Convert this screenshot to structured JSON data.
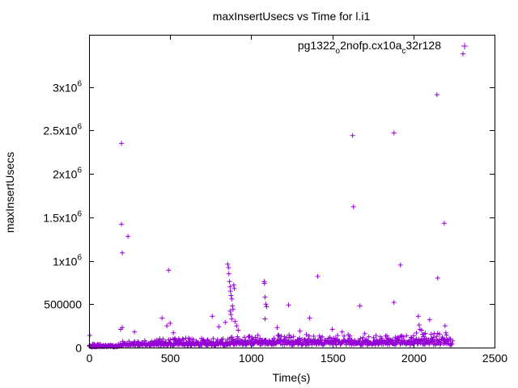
{
  "chart_data": {
    "type": "scatter",
    "title": "maxInsertUsecs vs Time for l.i1",
    "xlabel": "Time(s)",
    "ylabel": "maxInsertUsecs",
    "xlim": [
      0,
      2500
    ],
    "ylim": [
      0,
      3600000
    ],
    "grid": false,
    "legend_position": "top-right",
    "marker": "plus",
    "x_ticks": [
      {
        "value": 0,
        "label": "0"
      },
      {
        "value": 500,
        "label": "500"
      },
      {
        "value": 1000,
        "label": "1000"
      },
      {
        "value": 1500,
        "label": "1500"
      },
      {
        "value": 2000,
        "label": "2000"
      },
      {
        "value": 2500,
        "label": "2500"
      }
    ],
    "y_ticks": [
      {
        "value": 0,
        "mant": "0",
        "exp": ""
      },
      {
        "value": 500000,
        "mant": "500000",
        "exp": ""
      },
      {
        "value": 1000000,
        "mant": "1x10",
        "exp": "6"
      },
      {
        "value": 1500000,
        "mant": "1.5x10",
        "exp": "6"
      },
      {
        "value": 2000000,
        "mant": "2x10",
        "exp": "6"
      },
      {
        "value": 2500000,
        "mant": "2.5x10",
        "exp": "6"
      },
      {
        "value": 3000000,
        "mant": "3x10",
        "exp": "6"
      }
    ],
    "legend": {
      "parts": [
        {
          "text": "pg1322",
          "sub": false
        },
        {
          "text": "o",
          "sub": true
        },
        {
          "text": "2nofp.cx10a",
          "sub": false
        },
        {
          "text": "c",
          "sub": true
        },
        {
          "text": "32r128",
          "sub": false
        }
      ]
    },
    "series": [
      {
        "color": "#9400d3",
        "outliers": [
          [
            5,
            140000
          ],
          [
            200,
            2350000
          ],
          [
            200,
            1420000
          ],
          [
            205,
            1090000
          ],
          [
            195,
            210000
          ],
          [
            205,
            230000
          ],
          [
            240,
            1280000
          ],
          [
            280,
            180000
          ],
          [
            450,
            340000
          ],
          [
            490,
            890000
          ],
          [
            480,
            250000
          ],
          [
            500,
            280000
          ],
          [
            520,
            170000
          ],
          [
            760,
            360000
          ],
          [
            800,
            240000
          ],
          [
            840,
            290000
          ],
          [
            855,
            960000
          ],
          [
            860,
            920000
          ],
          [
            862,
            850000
          ],
          [
            866,
            760000
          ],
          [
            870,
            700000
          ],
          [
            872,
            650000
          ],
          [
            876,
            600000
          ],
          [
            880,
            560000
          ],
          [
            884,
            480000
          ],
          [
            888,
            440000
          ],
          [
            892,
            720000
          ],
          [
            896,
            680000
          ],
          [
            870,
            420000
          ],
          [
            875,
            380000
          ],
          [
            880,
            330000
          ],
          [
            900,
            300000
          ],
          [
            910,
            250000
          ],
          [
            920,
            200000
          ],
          [
            1080,
            760000
          ],
          [
            1082,
            740000
          ],
          [
            1085,
            580000
          ],
          [
            1090,
            500000
          ],
          [
            1095,
            470000
          ],
          [
            1085,
            330000
          ],
          [
            1160,
            230000
          ],
          [
            1230,
            490000
          ],
          [
            1300,
            190000
          ],
          [
            1340,
            150000
          ],
          [
            1360,
            340000
          ],
          [
            1410,
            820000
          ],
          [
            1500,
            210000
          ],
          [
            1560,
            180000
          ],
          [
            1625,
            2440000
          ],
          [
            1630,
            1620000
          ],
          [
            1670,
            480000
          ],
          [
            1700,
            160000
          ],
          [
            1880,
            2470000
          ],
          [
            1880,
            520000
          ],
          [
            1920,
            950000
          ],
          [
            2030,
            360000
          ],
          [
            2035,
            260000
          ],
          [
            2040,
            210000
          ],
          [
            2050,
            200000
          ],
          [
            2100,
            320000
          ],
          [
            2145,
            2910000
          ],
          [
            2150,
            800000
          ],
          [
            2190,
            1430000
          ],
          [
            2195,
            250000
          ],
          [
            2200,
            170000
          ],
          [
            2305,
            3380000
          ]
        ],
        "baseline_regions": [
          {
            "x_start": 0,
            "x_end": 190,
            "low": 5000,
            "high": 40000
          },
          {
            "x_start": 190,
            "x_end": 400,
            "low": 20000,
            "high": 80000
          },
          {
            "x_start": 400,
            "x_end": 850,
            "low": 20000,
            "high": 110000
          },
          {
            "x_start": 850,
            "x_end": 1000,
            "low": 30000,
            "high": 130000
          },
          {
            "x_start": 1000,
            "x_end": 1600,
            "low": 30000,
            "high": 150000
          },
          {
            "x_start": 1600,
            "x_end": 2000,
            "low": 30000,
            "high": 140000
          },
          {
            "x_start": 2000,
            "x_end": 2240,
            "low": 30000,
            "high": 170000
          }
        ],
        "baseline_step_s": 4
      }
    ]
  }
}
